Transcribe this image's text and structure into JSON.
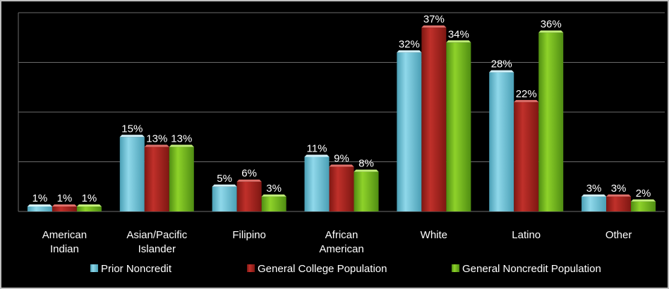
{
  "chart_data": {
    "type": "bar",
    "categories": [
      [
        "American",
        "Indian"
      ],
      [
        "Asian/Pacific",
        "Islander"
      ],
      [
        "Filipino"
      ],
      [
        "African",
        "American"
      ],
      [
        "White"
      ],
      [
        "Latino"
      ],
      [
        "Other"
      ]
    ],
    "series": [
      {
        "name": "Prior Noncredit",
        "values": [
          1,
          15,
          5,
          11,
          32,
          28,
          3
        ],
        "labels": [
          "1%",
          "15%",
          "5%",
          "11%",
          "32%",
          "28%",
          "3%"
        ]
      },
      {
        "name": "General College Population",
        "values": [
          1,
          13,
          6,
          9,
          37,
          22,
          3
        ],
        "labels": [
          "1%",
          "13%",
          "6%",
          "9%",
          "37%",
          "22%",
          "3%"
        ]
      },
      {
        "name": "General Noncredit Population",
        "values": [
          1,
          13,
          3,
          8,
          34,
          36,
          2
        ],
        "labels": [
          "1%",
          "13%",
          "3%",
          "8%",
          "34%",
          "36%",
          "2%"
        ]
      }
    ],
    "ylim": [
      0,
      40
    ],
    "yticks": [
      0,
      10,
      20,
      30,
      40
    ],
    "grid": true,
    "legend": "bottom",
    "colors": {
      "series": [
        "#8fd8ea",
        "#c0302a",
        "#8ed22a"
      ],
      "series_dark": [
        "#4a9fb5",
        "#7e1712",
        "#4f8d12"
      ],
      "series_top": [
        "#d4f2fa",
        "#e0706a",
        "#c2ef7a"
      ],
      "grid": "#6b6b6b",
      "background": "#000000",
      "text": "#ffffff"
    }
  }
}
